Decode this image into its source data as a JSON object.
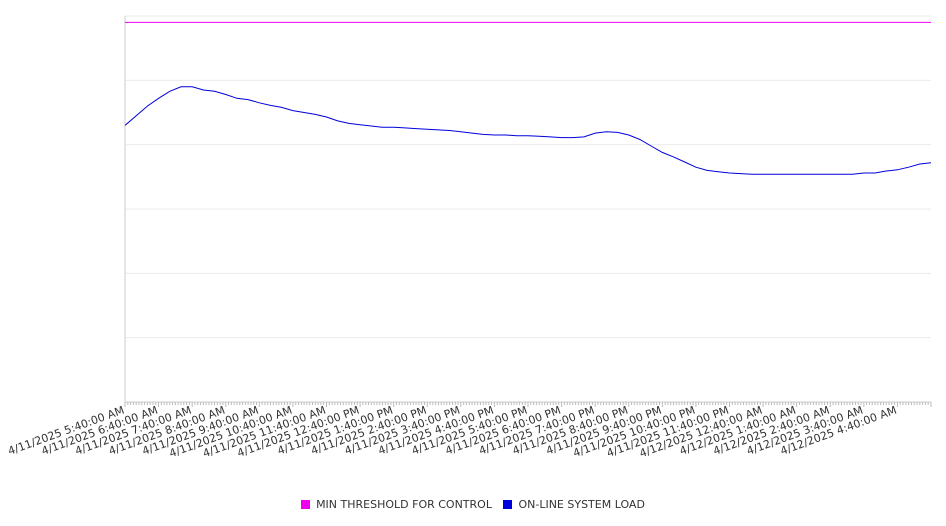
{
  "chart_data": {
    "type": "line",
    "title": "",
    "xlabel": "",
    "ylabel": "",
    "grid": true,
    "legend_position": "bottom-center",
    "y_axis_labels_shown": false,
    "ylim": [
      0,
      6
    ],
    "x_tick_labels": [
      "4/11/2025 5:40:00 AM",
      "4/11/2025 6:40:00 AM",
      "4/11/2025 7:40:00 AM",
      "4/11/2025 8:40:00 AM",
      "4/11/2025 9:40:00 AM",
      "4/11/2025 10:40:00 AM",
      "4/11/2025 11:40:00 AM",
      "4/11/2025 12:40:00 PM",
      "4/11/2025 1:40:00 PM",
      "4/11/2025 2:40:00 PM",
      "4/11/2025 3:40:00 PM",
      "4/11/2025 4:40:00 PM",
      "4/11/2025 5:40:00 PM",
      "4/11/2025 6:40:00 PM",
      "4/11/2025 7:40:00 PM",
      "4/11/2025 8:40:00 PM",
      "4/11/2025 9:40:00 PM",
      "4/11/2025 10:40:00 PM",
      "4/11/2025 11:40:00 PM",
      "4/12/2025 12:40:00 AM",
      "4/12/2025 1:40:00 AM",
      "4/12/2025 2:40:00 AM",
      "4/12/2025 3:40:00 AM",
      "4/12/2025 4:40:00 AM"
    ],
    "series": [
      {
        "name": "MIN THRESHOLD FOR CONTROL",
        "color": "#ee00ee",
        "x": [
          "4/11/2025 5:40:00 AM",
          "4/12/2025 5:40:00 AM"
        ],
        "values": [
          5.9,
          5.9
        ]
      },
      {
        "name": "ON-LINE SYSTEM LOAD",
        "color": "#0000dd",
        "x": [
          "4/11/2025 5:40:00 AM",
          "4/11/2025 6:00:00 AM",
          "4/11/2025 6:20:00 AM",
          "4/11/2025 6:40:00 AM",
          "4/11/2025 7:00:00 AM",
          "4/11/2025 7:20:00 AM",
          "4/11/2025 7:40:00 AM",
          "4/11/2025 8:00:00 AM",
          "4/11/2025 8:20:00 AM",
          "4/11/2025 8:40:00 AM",
          "4/11/2025 9:00:00 AM",
          "4/11/2025 9:20:00 AM",
          "4/11/2025 9:40:00 AM",
          "4/11/2025 10:00:00 AM",
          "4/11/2025 10:20:00 AM",
          "4/11/2025 10:40:00 AM",
          "4/11/2025 11:00:00 AM",
          "4/11/2025 11:20:00 AM",
          "4/11/2025 11:40:00 AM",
          "4/11/2025 12:00:00 PM",
          "4/11/2025 12:20:00 PM",
          "4/11/2025 12:40:00 PM",
          "4/11/2025 1:00:00 PM",
          "4/11/2025 1:20:00 PM",
          "4/11/2025 1:40:00 PM",
          "4/11/2025 2:00:00 PM",
          "4/11/2025 2:20:00 PM",
          "4/11/2025 2:40:00 PM",
          "4/11/2025 3:00:00 PM",
          "4/11/2025 3:20:00 PM",
          "4/11/2025 3:40:00 PM",
          "4/11/2025 4:00:00 PM",
          "4/11/2025 4:20:00 PM",
          "4/11/2025 4:40:00 PM",
          "4/11/2025 5:00:00 PM",
          "4/11/2025 5:20:00 PM",
          "4/11/2025 5:40:00 PM",
          "4/11/2025 6:00:00 PM",
          "4/11/2025 6:20:00 PM",
          "4/11/2025 6:40:00 PM",
          "4/11/2025 7:00:00 PM",
          "4/11/2025 7:20:00 PM",
          "4/11/2025 7:40:00 PM",
          "4/11/2025 8:00:00 PM",
          "4/11/2025 8:20:00 PM",
          "4/11/2025 8:40:00 PM",
          "4/11/2025 9:00:00 PM",
          "4/11/2025 9:20:00 PM",
          "4/11/2025 9:40:00 PM",
          "4/11/2025 10:00:00 PM",
          "4/11/2025 10:20:00 PM",
          "4/11/2025 10:40:00 PM",
          "4/11/2025 11:00:00 PM",
          "4/11/2025 11:20:00 PM",
          "4/11/2025 11:40:00 PM",
          "4/12/2025 12:00:00 AM",
          "4/12/2025 12:20:00 AM",
          "4/12/2025 12:40:00 AM",
          "4/12/2025 1:00:00 AM",
          "4/12/2025 1:20:00 AM",
          "4/12/2025 1:40:00 AM",
          "4/12/2025 2:00:00 AM",
          "4/12/2025 2:20:00 AM",
          "4/12/2025 2:40:00 AM",
          "4/12/2025 3:00:00 AM",
          "4/12/2025 3:20:00 AM",
          "4/12/2025 3:40:00 AM",
          "4/12/2025 4:00:00 AM",
          "4/12/2025 4:20:00 AM",
          "4/12/2025 4:40:00 AM",
          "4/12/2025 5:00:00 AM",
          "4/12/2025 5:20:00 AM",
          "4/12/2025 5:40:00 AM"
        ],
        "values": [
          4.3,
          4.45,
          4.6,
          4.72,
          4.83,
          4.9,
          4.9,
          4.85,
          4.83,
          4.78,
          4.72,
          4.7,
          4.65,
          4.61,
          4.58,
          4.53,
          4.5,
          4.47,
          4.43,
          4.37,
          4.33,
          4.31,
          4.29,
          4.27,
          4.27,
          4.26,
          4.25,
          4.24,
          4.23,
          4.22,
          4.2,
          4.18,
          4.16,
          4.15,
          4.15,
          4.14,
          4.14,
          4.13,
          4.12,
          4.11,
          4.11,
          4.12,
          4.18,
          4.2,
          4.19,
          4.15,
          4.08,
          3.98,
          3.88,
          3.81,
          3.73,
          3.65,
          3.6,
          3.58,
          3.56,
          3.55,
          3.54,
          3.54,
          3.54,
          3.54,
          3.54,
          3.54,
          3.54,
          3.54,
          3.54,
          3.54,
          3.56,
          3.56,
          3.59,
          3.61,
          3.65,
          3.7,
          3.72
        ]
      }
    ]
  }
}
